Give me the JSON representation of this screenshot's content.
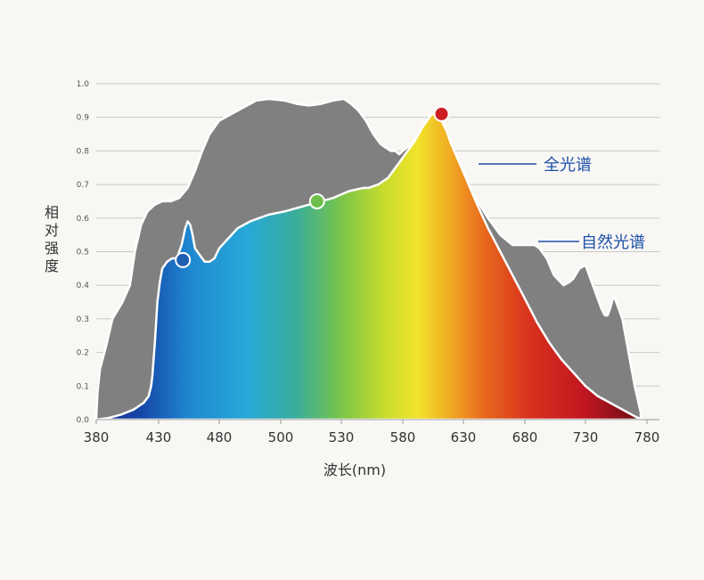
{
  "chart_data": {
    "type": "area",
    "xlabel": "波长(nm)",
    "ylabel": "相对强度",
    "xlim": [
      380,
      780
    ],
    "ylim": [
      0,
      1.0
    ],
    "x_ticks": [
      "380",
      "430",
      "480",
      "500",
      "530",
      "580",
      "630",
      "680",
      "730",
      "780"
    ],
    "y_ticks": [
      "0.0",
      "0.1",
      "0.2",
      "0.3",
      "0.4",
      "0.5",
      "0.6",
      "0.7",
      "0.8",
      "0.9",
      "1.0"
    ],
    "grid": true,
    "series": [
      {
        "name": "自然光谱",
        "color": "#808080",
        "x": [
          380,
          381,
          383,
          388,
          393,
          401,
          407,
          411,
          416,
          421,
          427,
          433,
          440,
          447,
          454,
          460,
          466,
          472,
          480,
          488,
          492,
          496,
          502,
          508,
          514,
          520,
          526,
          532,
          538,
          544,
          550,
          556,
          562,
          566,
          570,
          574,
          577,
          580,
          590,
          610,
          628,
          640,
          650,
          660,
          670,
          680,
          684,
          688,
          692,
          698,
          704,
          712,
          717,
          720,
          725,
          730,
          734,
          739,
          743,
          745,
          746,
          748,
          750,
          753,
          760,
          770,
          775
        ],
        "y": [
          0.0,
          0.08,
          0.15,
          0.22,
          0.3,
          0.35,
          0.4,
          0.5,
          0.58,
          0.62,
          0.64,
          0.65,
          0.65,
          0.66,
          0.69,
          0.74,
          0.8,
          0.85,
          0.89,
          0.93,
          0.95,
          0.955,
          0.95,
          0.94,
          0.935,
          0.94,
          0.95,
          0.955,
          0.94,
          0.92,
          0.89,
          0.85,
          0.82,
          0.81,
          0.8,
          0.8,
          0.79,
          0.8,
          0.83,
          0.8,
          0.72,
          0.66,
          0.6,
          0.55,
          0.52,
          0.52,
          0.52,
          0.52,
          0.51,
          0.48,
          0.43,
          0.4,
          0.41,
          0.42,
          0.45,
          0.46,
          0.42,
          0.37,
          0.33,
          0.315,
          0.31,
          0.31,
          0.33,
          0.37,
          0.3,
          0.1,
          0.02
        ]
      },
      {
        "name": "全光谱",
        "color": "spectrum",
        "x": [
          380,
          390,
          400,
          410,
          418,
          422,
          424,
          425,
          426,
          427,
          428,
          429,
          431,
          433,
          437,
          441,
          444,
          445,
          449,
          452,
          454,
          456,
          458,
          460,
          464,
          468,
          472,
          476,
          480,
          482,
          484,
          486,
          490,
          496,
          502,
          508,
          514,
          520,
          526,
          536,
          548,
          552,
          560,
          568,
          576,
          584,
          590,
          596,
          600,
          604,
          608,
          612,
          616,
          620,
          626,
          632,
          640,
          650,
          660,
          670,
          680,
          690,
          700,
          710,
          720,
          730,
          740,
          750,
          760,
          770,
          776
        ],
        "y": [
          0.0,
          0.005,
          0.015,
          0.03,
          0.05,
          0.07,
          0.1,
          0.13,
          0.18,
          0.23,
          0.29,
          0.35,
          0.41,
          0.45,
          0.47,
          0.48,
          0.48,
          0.48,
          0.52,
          0.57,
          0.59,
          0.58,
          0.55,
          0.51,
          0.49,
          0.47,
          0.47,
          0.48,
          0.51,
          0.53,
          0.55,
          0.57,
          0.59,
          0.61,
          0.62,
          0.63,
          0.64,
          0.65,
          0.66,
          0.68,
          0.69,
          0.69,
          0.7,
          0.72,
          0.76,
          0.8,
          0.83,
          0.87,
          0.89,
          0.91,
          0.905,
          0.89,
          0.86,
          0.82,
          0.77,
          0.72,
          0.65,
          0.57,
          0.5,
          0.43,
          0.36,
          0.29,
          0.23,
          0.18,
          0.14,
          0.1,
          0.07,
          0.05,
          0.03,
          0.01,
          0.0
        ]
      }
    ],
    "markers": [
      {
        "x": 450,
        "y": 0.475,
        "color": "#1f5fb0"
      },
      {
        "x": 518,
        "y": 0.65,
        "color": "#6cc04a"
      },
      {
        "x": 612,
        "y": 0.91,
        "color": "#cc1e23"
      }
    ],
    "legend": [
      {
        "label": "全光谱",
        "series": 1
      },
      {
        "label": "自然光谱",
        "series": 0
      }
    ]
  }
}
